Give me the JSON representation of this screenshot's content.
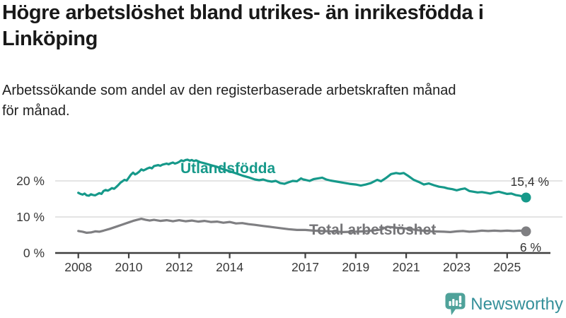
{
  "header": {
    "title": "Högre arbetslöshet bland utrikes- än inrikesfödda i\nLinköping",
    "subtitle": "Arbetssökande som andel av den registerbaserade arbetskraften månad\nför månad."
  },
  "footer": {
    "brand": "Newsworthy"
  },
  "colors": {
    "series_foreign": "#16998a",
    "series_total": "#7f7f82",
    "series_total_label": "#757578",
    "gridline": "#dcdcdc",
    "axis": "#3e3e3e",
    "tick_text": "#383838",
    "value_label_text": "#333333",
    "brand_icon": "#4fa29a",
    "brand_text": "#35909a"
  },
  "chart_data": {
    "type": "line",
    "title": "Högre arbetslöshet bland utrikes- än inrikesfödda i Linköping",
    "subtitle": "Arbetssökande som andel av den registerbaserade arbetskraften månad för månad.",
    "x_unit": "year",
    "grid": true,
    "x_axis": {
      "ticks": [
        2008,
        2010,
        2012,
        2014,
        2017,
        2019,
        2021,
        2023,
        2025
      ],
      "tick_labels": [
        "2008",
        "2010",
        "2012",
        "2014",
        "2017",
        "2019",
        "2021",
        "2023",
        "2025"
      ],
      "range": [
        2007.9,
        2026.3
      ]
    },
    "y_axis": {
      "ticks": [
        0,
        10,
        20
      ],
      "tick_labels": [
        "0 %",
        "10 %",
        "20 %"
      ],
      "tick_suffix": " %",
      "range": [
        0,
        28
      ]
    },
    "series": [
      {
        "name": "Utlandsfödda",
        "color": "#16998a",
        "end_value": 15.4,
        "end_label": "15,4 %",
        "points": [
          [
            2008.0,
            16.7
          ],
          [
            2008.08,
            16.4
          ],
          [
            2008.17,
            16.2
          ],
          [
            2008.25,
            16.5
          ],
          [
            2008.33,
            16.0
          ],
          [
            2008.42,
            15.9
          ],
          [
            2008.5,
            16.3
          ],
          [
            2008.58,
            16.1
          ],
          [
            2008.67,
            16.0
          ],
          [
            2008.75,
            16.3
          ],
          [
            2008.83,
            16.6
          ],
          [
            2008.92,
            16.4
          ],
          [
            2009.0,
            17.2
          ],
          [
            2009.08,
            17.5
          ],
          [
            2009.17,
            17.3
          ],
          [
            2009.25,
            17.6
          ],
          [
            2009.33,
            18.0
          ],
          [
            2009.42,
            17.8
          ],
          [
            2009.5,
            18.3
          ],
          [
            2009.58,
            18.8
          ],
          [
            2009.67,
            19.5
          ],
          [
            2009.75,
            19.9
          ],
          [
            2009.83,
            20.3
          ],
          [
            2009.92,
            20.1
          ],
          [
            2010.0,
            20.9
          ],
          [
            2010.08,
            21.7
          ],
          [
            2010.17,
            22.3
          ],
          [
            2010.25,
            21.8
          ],
          [
            2010.33,
            22.1
          ],
          [
            2010.42,
            22.6
          ],
          [
            2010.5,
            23.2
          ],
          [
            2010.58,
            22.9
          ],
          [
            2010.67,
            23.2
          ],
          [
            2010.75,
            23.5
          ],
          [
            2010.83,
            23.7
          ],
          [
            2010.92,
            23.5
          ],
          [
            2011.0,
            24.1
          ],
          [
            2011.17,
            24.4
          ],
          [
            2011.25,
            24.2
          ],
          [
            2011.33,
            24.5
          ],
          [
            2011.5,
            24.8
          ],
          [
            2011.58,
            24.6
          ],
          [
            2011.67,
            24.9
          ],
          [
            2011.75,
            25.1
          ],
          [
            2011.83,
            24.8
          ],
          [
            2011.92,
            25.0
          ],
          [
            2012.0,
            25.3
          ],
          [
            2012.08,
            25.7
          ],
          [
            2012.17,
            25.5
          ],
          [
            2012.25,
            25.8
          ],
          [
            2012.33,
            25.9
          ],
          [
            2012.42,
            25.6
          ],
          [
            2012.5,
            25.8
          ],
          [
            2012.58,
            25.5
          ],
          [
            2012.67,
            25.7
          ],
          [
            2012.83,
            25.2
          ],
          [
            2013.0,
            24.9
          ],
          [
            2013.25,
            24.4
          ],
          [
            2013.5,
            23.9
          ],
          [
            2013.75,
            23.2
          ],
          [
            2014.0,
            22.7
          ],
          [
            2014.25,
            22.1
          ],
          [
            2014.5,
            21.5
          ],
          [
            2014.75,
            21.0
          ],
          [
            2015.0,
            20.4
          ],
          [
            2015.17,
            20.2
          ],
          [
            2015.33,
            20.4
          ],
          [
            2015.5,
            20.0
          ],
          [
            2015.67,
            19.8
          ],
          [
            2015.83,
            20.0
          ],
          [
            2016.0,
            19.4
          ],
          [
            2016.17,
            19.2
          ],
          [
            2016.33,
            19.6
          ],
          [
            2016.5,
            20.0
          ],
          [
            2016.67,
            19.9
          ],
          [
            2016.83,
            20.7
          ],
          [
            2016.92,
            20.4
          ],
          [
            2017.0,
            20.3
          ],
          [
            2017.17,
            20.0
          ],
          [
            2017.33,
            20.5
          ],
          [
            2017.5,
            20.7
          ],
          [
            2017.67,
            20.9
          ],
          [
            2017.83,
            20.4
          ],
          [
            2018.0,
            20.1
          ],
          [
            2018.25,
            19.8
          ],
          [
            2018.5,
            19.5
          ],
          [
            2018.75,
            19.2
          ],
          [
            2019.0,
            19.0
          ],
          [
            2019.2,
            18.7
          ],
          [
            2019.4,
            19.0
          ],
          [
            2019.6,
            19.4
          ],
          [
            2019.85,
            20.3
          ],
          [
            2020.0,
            19.9
          ],
          [
            2020.2,
            20.8
          ],
          [
            2020.4,
            21.9
          ],
          [
            2020.6,
            22.2
          ],
          [
            2020.75,
            22.0
          ],
          [
            2020.9,
            22.2
          ],
          [
            2021.1,
            21.3
          ],
          [
            2021.3,
            20.3
          ],
          [
            2021.5,
            19.7
          ],
          [
            2021.7,
            19.0
          ],
          [
            2021.9,
            19.3
          ],
          [
            2022.1,
            18.8
          ],
          [
            2022.3,
            18.4
          ],
          [
            2022.5,
            18.2
          ],
          [
            2022.65,
            17.9
          ],
          [
            2022.83,
            17.7
          ],
          [
            2023.0,
            17.4
          ],
          [
            2023.17,
            17.7
          ],
          [
            2023.33,
            17.9
          ],
          [
            2023.5,
            17.2
          ],
          [
            2023.67,
            17.0
          ],
          [
            2023.83,
            16.8
          ],
          [
            2024.0,
            16.9
          ],
          [
            2024.17,
            16.7
          ],
          [
            2024.33,
            16.5
          ],
          [
            2024.5,
            16.8
          ],
          [
            2024.67,
            17.0
          ],
          [
            2024.83,
            16.7
          ],
          [
            2025.0,
            16.4
          ],
          [
            2025.17,
            16.5
          ],
          [
            2025.33,
            16.1
          ],
          [
            2025.5,
            15.9
          ],
          [
            2025.67,
            15.6
          ],
          [
            2025.75,
            15.4
          ]
        ]
      },
      {
        "name": "Total arbetslöshet",
        "color": "#7f7f82",
        "end_value": 6,
        "end_label": "6 %",
        "points": [
          [
            2008.0,
            6.1
          ],
          [
            2008.17,
            5.9
          ],
          [
            2008.33,
            5.6
          ],
          [
            2008.5,
            5.7
          ],
          [
            2008.67,
            6.0
          ],
          [
            2008.83,
            5.9
          ],
          [
            2009.0,
            6.2
          ],
          [
            2009.25,
            6.7
          ],
          [
            2009.5,
            7.3
          ],
          [
            2009.75,
            7.9
          ],
          [
            2010.0,
            8.5
          ],
          [
            2010.17,
            8.9
          ],
          [
            2010.33,
            9.2
          ],
          [
            2010.5,
            9.5
          ],
          [
            2010.67,
            9.2
          ],
          [
            2010.83,
            9.0
          ],
          [
            2011.0,
            9.2
          ],
          [
            2011.25,
            8.9
          ],
          [
            2011.5,
            9.1
          ],
          [
            2011.75,
            8.8
          ],
          [
            2012.0,
            9.1
          ],
          [
            2012.25,
            8.8
          ],
          [
            2012.5,
            9.0
          ],
          [
            2012.75,
            8.7
          ],
          [
            2013.0,
            8.9
          ],
          [
            2013.25,
            8.6
          ],
          [
            2013.5,
            8.7
          ],
          [
            2013.75,
            8.4
          ],
          [
            2014.0,
            8.6
          ],
          [
            2014.25,
            8.2
          ],
          [
            2014.5,
            8.3
          ],
          [
            2014.75,
            8.0
          ],
          [
            2015.0,
            7.8
          ],
          [
            2015.33,
            7.5
          ],
          [
            2015.67,
            7.2
          ],
          [
            2016.0,
            6.9
          ],
          [
            2016.33,
            6.6
          ],
          [
            2016.67,
            6.4
          ],
          [
            2017.0,
            6.4
          ],
          [
            2017.33,
            6.2
          ],
          [
            2017.67,
            6.1
          ],
          [
            2018.0,
            6.0
          ],
          [
            2018.5,
            5.8
          ],
          [
            2019.0,
            5.9
          ],
          [
            2019.5,
            6.1
          ],
          [
            2020.0,
            6.5
          ],
          [
            2020.25,
            7.3
          ],
          [
            2020.5,
            7.1
          ],
          [
            2020.75,
            6.9
          ],
          [
            2021.0,
            6.8
          ],
          [
            2021.5,
            6.3
          ],
          [
            2022.0,
            6.0
          ],
          [
            2022.5,
            5.9
          ],
          [
            2022.75,
            5.8
          ],
          [
            2023.0,
            6.0
          ],
          [
            2023.25,
            6.1
          ],
          [
            2023.5,
            5.9
          ],
          [
            2023.75,
            6.0
          ],
          [
            2024.0,
            6.2
          ],
          [
            2024.25,
            6.1
          ],
          [
            2024.5,
            6.2
          ],
          [
            2024.75,
            6.1
          ],
          [
            2025.0,
            6.2
          ],
          [
            2025.25,
            6.1
          ],
          [
            2025.5,
            6.2
          ],
          [
            2025.75,
            6.0
          ]
        ]
      }
    ],
    "legend_position": "inline-labels"
  }
}
